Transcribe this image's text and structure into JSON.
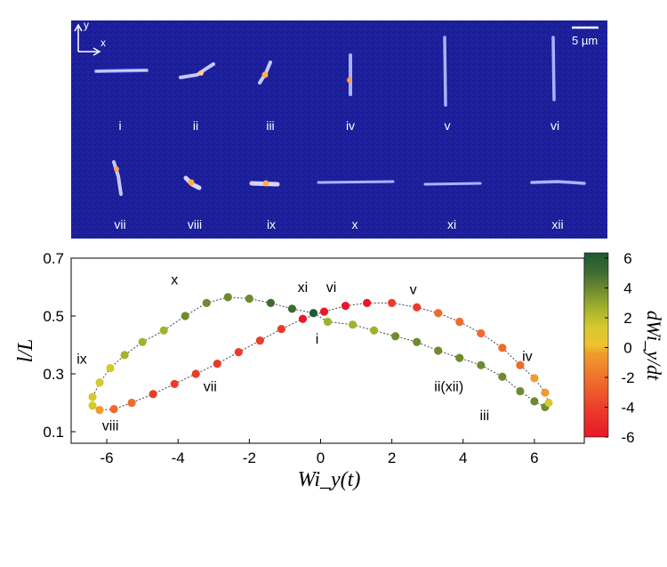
{
  "micrograph": {
    "axes": {
      "x": "x",
      "y": "y"
    },
    "scale_bar": "5 µm",
    "frames_row1": [
      "i",
      "ii",
      "iii",
      "iv",
      "v",
      "vi"
    ],
    "frames_row2": [
      "vii",
      "viii",
      "ix",
      "x",
      "xi",
      "xii"
    ]
  },
  "chart_data": {
    "type": "scatter",
    "xlabel": "Wi_y(t)",
    "ylabel": "l/L",
    "xlim": [
      -7,
      7.4
    ],
    "ylim": [
      0.06,
      0.7
    ],
    "xticks": [
      -6,
      -4,
      -2,
      0,
      2,
      4,
      6
    ],
    "yticks": [
      0.1,
      0.3,
      0.5,
      0.7
    ],
    "colorbar": {
      "label": "dWi_y/dt",
      "ticks": [
        -6,
        -4,
        -2,
        0,
        2,
        4,
        6
      ],
      "colors": [
        "#e8182a",
        "#ec3b2b",
        "#ef6b2c",
        "#f09b2e",
        "#efc22f",
        "#d4c92e",
        "#a2b22d",
        "#6f8b2f",
        "#3d6a32",
        "#1d5a30"
      ]
    },
    "series": [
      {
        "values": [
          [
            0.2,
            0.48,
            2.2
          ],
          [
            0.9,
            0.47,
            2.4
          ],
          [
            1.5,
            0.45,
            2.6
          ],
          [
            2.1,
            0.43,
            2.8
          ],
          [
            2.7,
            0.41,
            2.9
          ],
          [
            3.3,
            0.38,
            3.0
          ],
          [
            3.9,
            0.355,
            3.0
          ],
          [
            4.5,
            0.33,
            3.0
          ],
          [
            5.1,
            0.29,
            3.0
          ],
          [
            5.6,
            0.24,
            3.0
          ],
          [
            6.0,
            0.205,
            3.0
          ],
          [
            6.3,
            0.185,
            3.0
          ],
          [
            6.4,
            0.2,
            0.0
          ],
          [
            6.3,
            0.235,
            -1.5
          ],
          [
            6.0,
            0.285,
            -2.5
          ],
          [
            5.6,
            0.33,
            -3.0
          ],
          [
            5.1,
            0.39,
            -3.0
          ],
          [
            4.5,
            0.44,
            -3.0
          ],
          [
            3.9,
            0.48,
            -3.5
          ],
          [
            3.3,
            0.51,
            -4.0
          ],
          [
            2.7,
            0.53,
            -4.5
          ],
          [
            2.0,
            0.545,
            -5.0
          ],
          [
            1.3,
            0.545,
            -5.5
          ],
          [
            0.7,
            0.535,
            -5.5
          ],
          [
            0.1,
            0.515,
            -5.5
          ],
          [
            -0.5,
            0.49,
            -5.5
          ],
          [
            -1.1,
            0.455,
            -5.0
          ],
          [
            -1.7,
            0.415,
            -5.0
          ],
          [
            -2.3,
            0.375,
            -5.0
          ],
          [
            -2.9,
            0.335,
            -5.0
          ],
          [
            -3.5,
            0.3,
            -5.0
          ],
          [
            -4.1,
            0.265,
            -5.0
          ],
          [
            -4.7,
            0.23,
            -4.5
          ],
          [
            -5.3,
            0.2,
            -4.0
          ],
          [
            -5.8,
            0.178,
            -3.0
          ],
          [
            -6.2,
            0.175,
            -1.5
          ],
          [
            -6.4,
            0.19,
            0.0
          ],
          [
            -6.4,
            0.22,
            0.0
          ],
          [
            -6.2,
            0.27,
            0.5
          ],
          [
            -5.9,
            0.32,
            1.0
          ],
          [
            -5.5,
            0.365,
            1.5
          ],
          [
            -5.0,
            0.41,
            2.0
          ],
          [
            -4.4,
            0.45,
            2.5
          ],
          [
            -3.8,
            0.5,
            3.0
          ],
          [
            -3.2,
            0.545,
            3.0
          ],
          [
            -2.6,
            0.565,
            3.2
          ],
          [
            -2.0,
            0.56,
            3.5
          ],
          [
            -1.4,
            0.545,
            4.0
          ],
          [
            -0.8,
            0.525,
            5.0
          ],
          [
            -0.2,
            0.51,
            5.5
          ]
        ]
      }
    ],
    "annotations": [
      {
        "text": "x",
        "x": -4.1,
        "y": 0.61
      },
      {
        "text": "xi",
        "x": -0.5,
        "y": 0.583
      },
      {
        "text": "vi",
        "x": 0.3,
        "y": 0.583
      },
      {
        "text": "v",
        "x": 2.6,
        "y": 0.575
      },
      {
        "text": "i",
        "x": -0.1,
        "y": 0.405
      },
      {
        "text": "ix",
        "x": -6.7,
        "y": 0.335
      },
      {
        "text": "vii",
        "x": -3.1,
        "y": 0.24
      },
      {
        "text": "viii",
        "x": -5.9,
        "y": 0.105
      },
      {
        "text": "ii(xii)",
        "x": 3.6,
        "y": 0.24
      },
      {
        "text": "iii",
        "x": 4.6,
        "y": 0.14
      },
      {
        "text": "iv",
        "x": 5.8,
        "y": 0.345
      }
    ]
  }
}
